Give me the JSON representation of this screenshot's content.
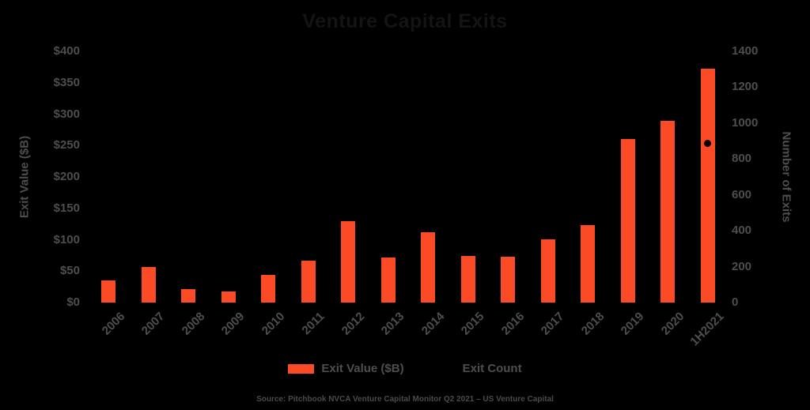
{
  "title": "Venture Capital Exits",
  "colors": {
    "background": "#000000",
    "bar": "#FB4B26",
    "marker": "#000000",
    "axis_text": "#4E4E4E",
    "title_text": "#141414"
  },
  "left_axis": {
    "label": "Exit Value ($B)",
    "ticks": [
      "$0",
      "$50",
      "$100",
      "$150",
      "$200",
      "$250",
      "$300",
      "$350",
      "$400"
    ]
  },
  "right_axis": {
    "label": "Number of Exits",
    "ticks": [
      "0",
      "200",
      "400",
      "600",
      "800",
      "1000",
      "1200",
      "1400"
    ]
  },
  "legend": [
    {
      "label": "Exit Value ($B)",
      "marker": "bar-swatch"
    },
    {
      "label": "Exit Count",
      "marker": "dot"
    }
  ],
  "source": "Source: Pitchbook NVCA Venture Capital Monitor Q2 2021 – US Venture Capital",
  "chart_data": {
    "type": "bar",
    "title": "Venture Capital Exits",
    "categories": [
      "2006",
      "2007",
      "2008",
      "2009",
      "2010",
      "2011",
      "2012",
      "2013",
      "2014",
      "2015",
      "2016",
      "2017",
      "2018",
      "2019",
      "2020",
      "1H2021"
    ],
    "series": [
      {
        "name": "Exit Value ($B)",
        "type": "bar",
        "axis": "left",
        "color": "#FB4B26",
        "values": [
          35,
          56,
          21,
          18,
          44,
          67,
          129,
          72,
          112,
          74,
          73,
          101,
          123,
          260,
          289,
          372
        ]
      },
      {
        "name": "Exit Count",
        "type": "scatter",
        "axis": "right",
        "color": "#000000",
        "values": [
          null,
          null,
          null,
          null,
          null,
          null,
          null,
          null,
          null,
          null,
          null,
          null,
          null,
          null,
          null,
          885
        ]
      }
    ],
    "xlabel": "",
    "ylabel_left": "Exit Value ($B)",
    "ylabel_right": "Number of Exits",
    "left_ylim": [
      0,
      400
    ],
    "right_ylim": [
      0,
      1400
    ],
    "grid": false,
    "legend_position": "bottom"
  }
}
